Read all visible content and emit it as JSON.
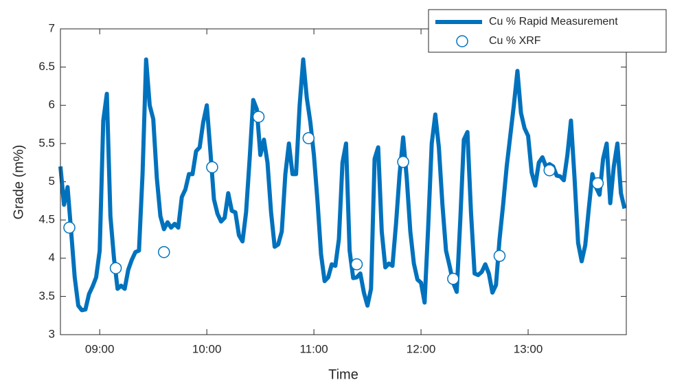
{
  "chart_data": {
    "type": "line",
    "x_label": "Time",
    "y_label": "Grade (m%)",
    "xlim": [
      518,
      835
    ],
    "ylim": [
      3,
      7
    ],
    "xticks": [
      {
        "value": 540,
        "label": "09:00"
      },
      {
        "value": 600,
        "label": "10:00"
      },
      {
        "value": 660,
        "label": "11:00"
      },
      {
        "value": 720,
        "label": "12:00"
      },
      {
        "value": 780,
        "label": "13:00"
      }
    ],
    "yticks": [
      3,
      3.5,
      4,
      4.5,
      5,
      5.5,
      6,
      6.5,
      7
    ],
    "legend": "top-right",
    "series": [
      {
        "name": "Cu % Rapid Measurement",
        "color": "#0072bd",
        "style": "line",
        "x": [
          518,
          520,
          522,
          524,
          526,
          528,
          530,
          532,
          534,
          536,
          538,
          540,
          542,
          544,
          546,
          548,
          550,
          552,
          554,
          556,
          558,
          560,
          562,
          564,
          566,
          568,
          570,
          572,
          574,
          576,
          578,
          580,
          582,
          584,
          586,
          588,
          590,
          592,
          594,
          596,
          598,
          600,
          602,
          604,
          606,
          608,
          610,
          612,
          614,
          616,
          618,
          620,
          622,
          624,
          626,
          628,
          630,
          632,
          634,
          636,
          638,
          640,
          642,
          644,
          646,
          648,
          650,
          652,
          654,
          656,
          658,
          660,
          662,
          664,
          666,
          668,
          670,
          672,
          674,
          676,
          678,
          680,
          682,
          684,
          686,
          688,
          690,
          692,
          694,
          696,
          698,
          700,
          702,
          704,
          706,
          708,
          710,
          712,
          714,
          716,
          718,
          720,
          722,
          724,
          726,
          728,
          730,
          732,
          734,
          736,
          738,
          740,
          742,
          744,
          746,
          748,
          750,
          752,
          754,
          756,
          758,
          760,
          762,
          764,
          766,
          768,
          770,
          772,
          774,
          776,
          778,
          780,
          782,
          784,
          786,
          788,
          790,
          792,
          794,
          796,
          798,
          800,
          802,
          804,
          806,
          808,
          810,
          812,
          814,
          816,
          818,
          820,
          822,
          824,
          826,
          828,
          830,
          832,
          834
        ],
        "values": [
          5.2,
          4.7,
          4.93,
          4.35,
          3.75,
          3.38,
          3.32,
          3.33,
          3.53,
          3.63,
          3.75,
          4.1,
          5.8,
          6.15,
          4.55,
          4.0,
          3.6,
          3.64,
          3.6,
          3.85,
          3.98,
          4.08,
          4.1,
          5.1,
          6.6,
          6.0,
          5.82,
          5.05,
          4.55,
          4.38,
          4.47,
          4.4,
          4.45,
          4.4,
          4.8,
          4.9,
          5.1,
          5.1,
          5.4,
          5.45,
          5.78,
          6.0,
          5.4,
          4.77,
          4.58,
          4.48,
          4.53,
          4.85,
          4.62,
          4.6,
          4.3,
          4.22,
          4.6,
          5.3,
          6.07,
          5.95,
          5.35,
          5.55,
          5.25,
          4.6,
          4.15,
          4.18,
          4.35,
          5.1,
          5.5,
          5.1,
          5.1,
          6.0,
          6.6,
          6.1,
          5.78,
          5.35,
          4.75,
          4.05,
          3.7,
          3.75,
          3.92,
          3.9,
          4.25,
          5.25,
          5.5,
          4.1,
          3.74,
          3.75,
          3.8,
          3.55,
          3.38,
          3.6,
          5.3,
          5.45,
          4.35,
          3.88,
          3.93,
          3.9,
          4.45,
          5.1,
          5.58,
          5.05,
          4.35,
          3.93,
          3.72,
          3.68,
          3.42,
          4.4,
          5.5,
          5.88,
          5.45,
          4.7,
          4.1,
          3.9,
          3.68,
          3.56,
          4.5,
          5.55,
          5.65,
          4.6,
          3.8,
          3.78,
          3.82,
          3.92,
          3.8,
          3.55,
          3.65,
          4.25,
          4.7,
          5.2,
          5.6,
          6.0,
          6.45,
          5.9,
          5.7,
          5.6,
          5.12,
          4.95,
          5.25,
          5.32,
          5.2,
          5.23,
          5.2,
          5.08,
          5.07,
          5.02,
          5.35,
          5.8,
          5.05,
          4.2,
          3.96,
          4.17,
          4.65,
          5.1,
          4.93,
          4.83,
          5.3,
          5.5,
          4.72,
          5.2,
          5.5,
          4.85,
          4.65
        ]
      },
      {
        "name": "Cu % XRF",
        "color": "#0072bd",
        "style": "marker",
        "x": [
          523,
          549,
          576,
          603,
          629,
          657,
          684,
          710,
          738,
          764,
          792,
          819
        ],
        "values": [
          4.4,
          3.87,
          4.08,
          5.19,
          5.85,
          5.57,
          3.92,
          5.26,
          3.73,
          4.03,
          5.15,
          4.98
        ]
      }
    ]
  }
}
